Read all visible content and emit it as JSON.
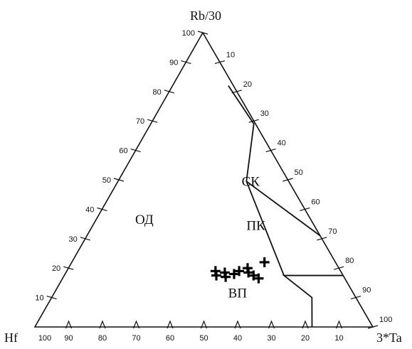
{
  "chart_data": {
    "type": "ternary",
    "apices": {
      "top": "Rb/30",
      "left": "Hf",
      "right": "3*Ta"
    },
    "ticks": {
      "top_axis": [
        "100",
        "90",
        "80",
        "70",
        "60",
        "50",
        "40",
        "30",
        "20",
        "10"
      ],
      "right_axis": [
        "10",
        "20",
        "30",
        "40",
        "50",
        "60",
        "70",
        "80",
        "90",
        "100"
      ],
      "bottom_axis": [
        "100",
        "90",
        "80",
        "70",
        "60",
        "50",
        "40",
        "30",
        "20",
        "10"
      ]
    },
    "regions": [
      {
        "label": "ОД",
        "rb": 35,
        "ta": 15
      },
      {
        "label": "СК",
        "rb": 48,
        "ta": 40
      },
      {
        "label": "ПК",
        "rb": 33,
        "ta": 49
      },
      {
        "label": "ВП",
        "rb": 10,
        "ta": 55
      }
    ],
    "boundaries": [
      {
        "points": [
          [
            0,
            82
          ],
          [
            10,
            77
          ],
          [
            17.5,
            65
          ],
          [
            17.5,
            82.5
          ]
        ]
      },
      {
        "points": [
          [
            17.5,
            65
          ],
          [
            49.5,
            38
          ],
          [
            69,
            30.5
          ],
          [
            82,
            16.5
          ]
        ]
      },
      {
        "points": [
          [
            49.5,
            38
          ],
          [
            31,
            69
          ]
        ]
      }
    ],
    "samples": [
      {
        "rb": 19.0,
        "ta": 44
      },
      {
        "rb": 17.5,
        "ta": 45
      },
      {
        "rb": 18.5,
        "ta": 47
      },
      {
        "rb": 17.0,
        "ta": 48
      },
      {
        "rb": 18.0,
        "ta": 50
      },
      {
        "rb": 19.0,
        "ta": 51
      },
      {
        "rb": 20.0,
        "ta": 53
      },
      {
        "rb": 18.5,
        "ta": 54
      },
      {
        "rb": 22.0,
        "ta": 57
      },
      {
        "rb": 17.5,
        "ta": 56
      },
      {
        "rb": 16.5,
        "ta": 58
      }
    ]
  }
}
